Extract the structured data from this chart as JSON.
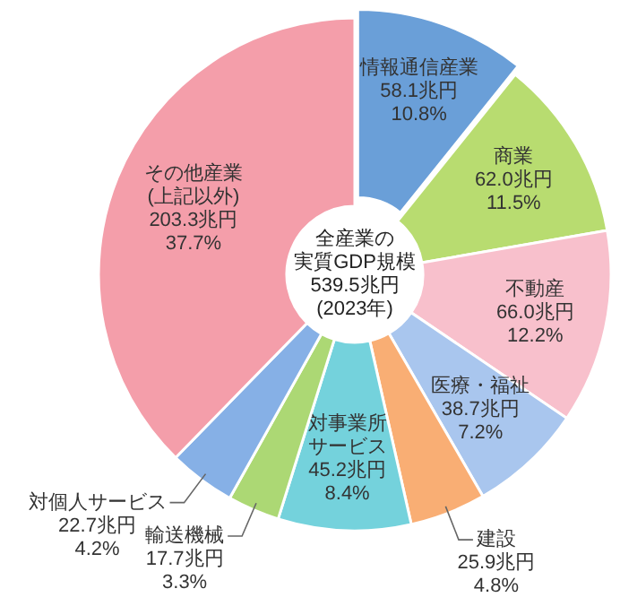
{
  "chart_data": {
    "type": "donut",
    "title": "全産業の実質GDP規模",
    "subtitle": "539.5兆円(2023年)",
    "categories": [
      "情報通信産業",
      "商業",
      "不動産",
      "医療・福祉",
      "建設",
      "対事業所サービス",
      "輸送機械",
      "対個人サービス",
      "その他産業(上記以外)"
    ],
    "values": [
      58.1,
      62.0,
      66.0,
      38.7,
      25.9,
      45.2,
      17.7,
      22.7,
      203.3
    ],
    "value_labels": [
      "58.1兆円\n10.8%",
      "62.0兆円\n11.5%",
      "66.0兆円\n12.2%",
      "38.7兆円\n7.2%",
      "25.9兆円\n4.8%",
      "45.2兆円\n8.4%",
      "17.7兆円\n3.3%",
      "22.7兆円\n4.2%",
      "203.3兆円\n37.7%"
    ],
    "colors": [
      "#6a9fd8",
      "#b8dc70",
      "#f8c0cc",
      "#a9c6ee",
      "#f9ae74",
      "#74d2dc",
      "#acd874",
      "#86b0e6",
      "#f49eaa"
    ]
  }
}
